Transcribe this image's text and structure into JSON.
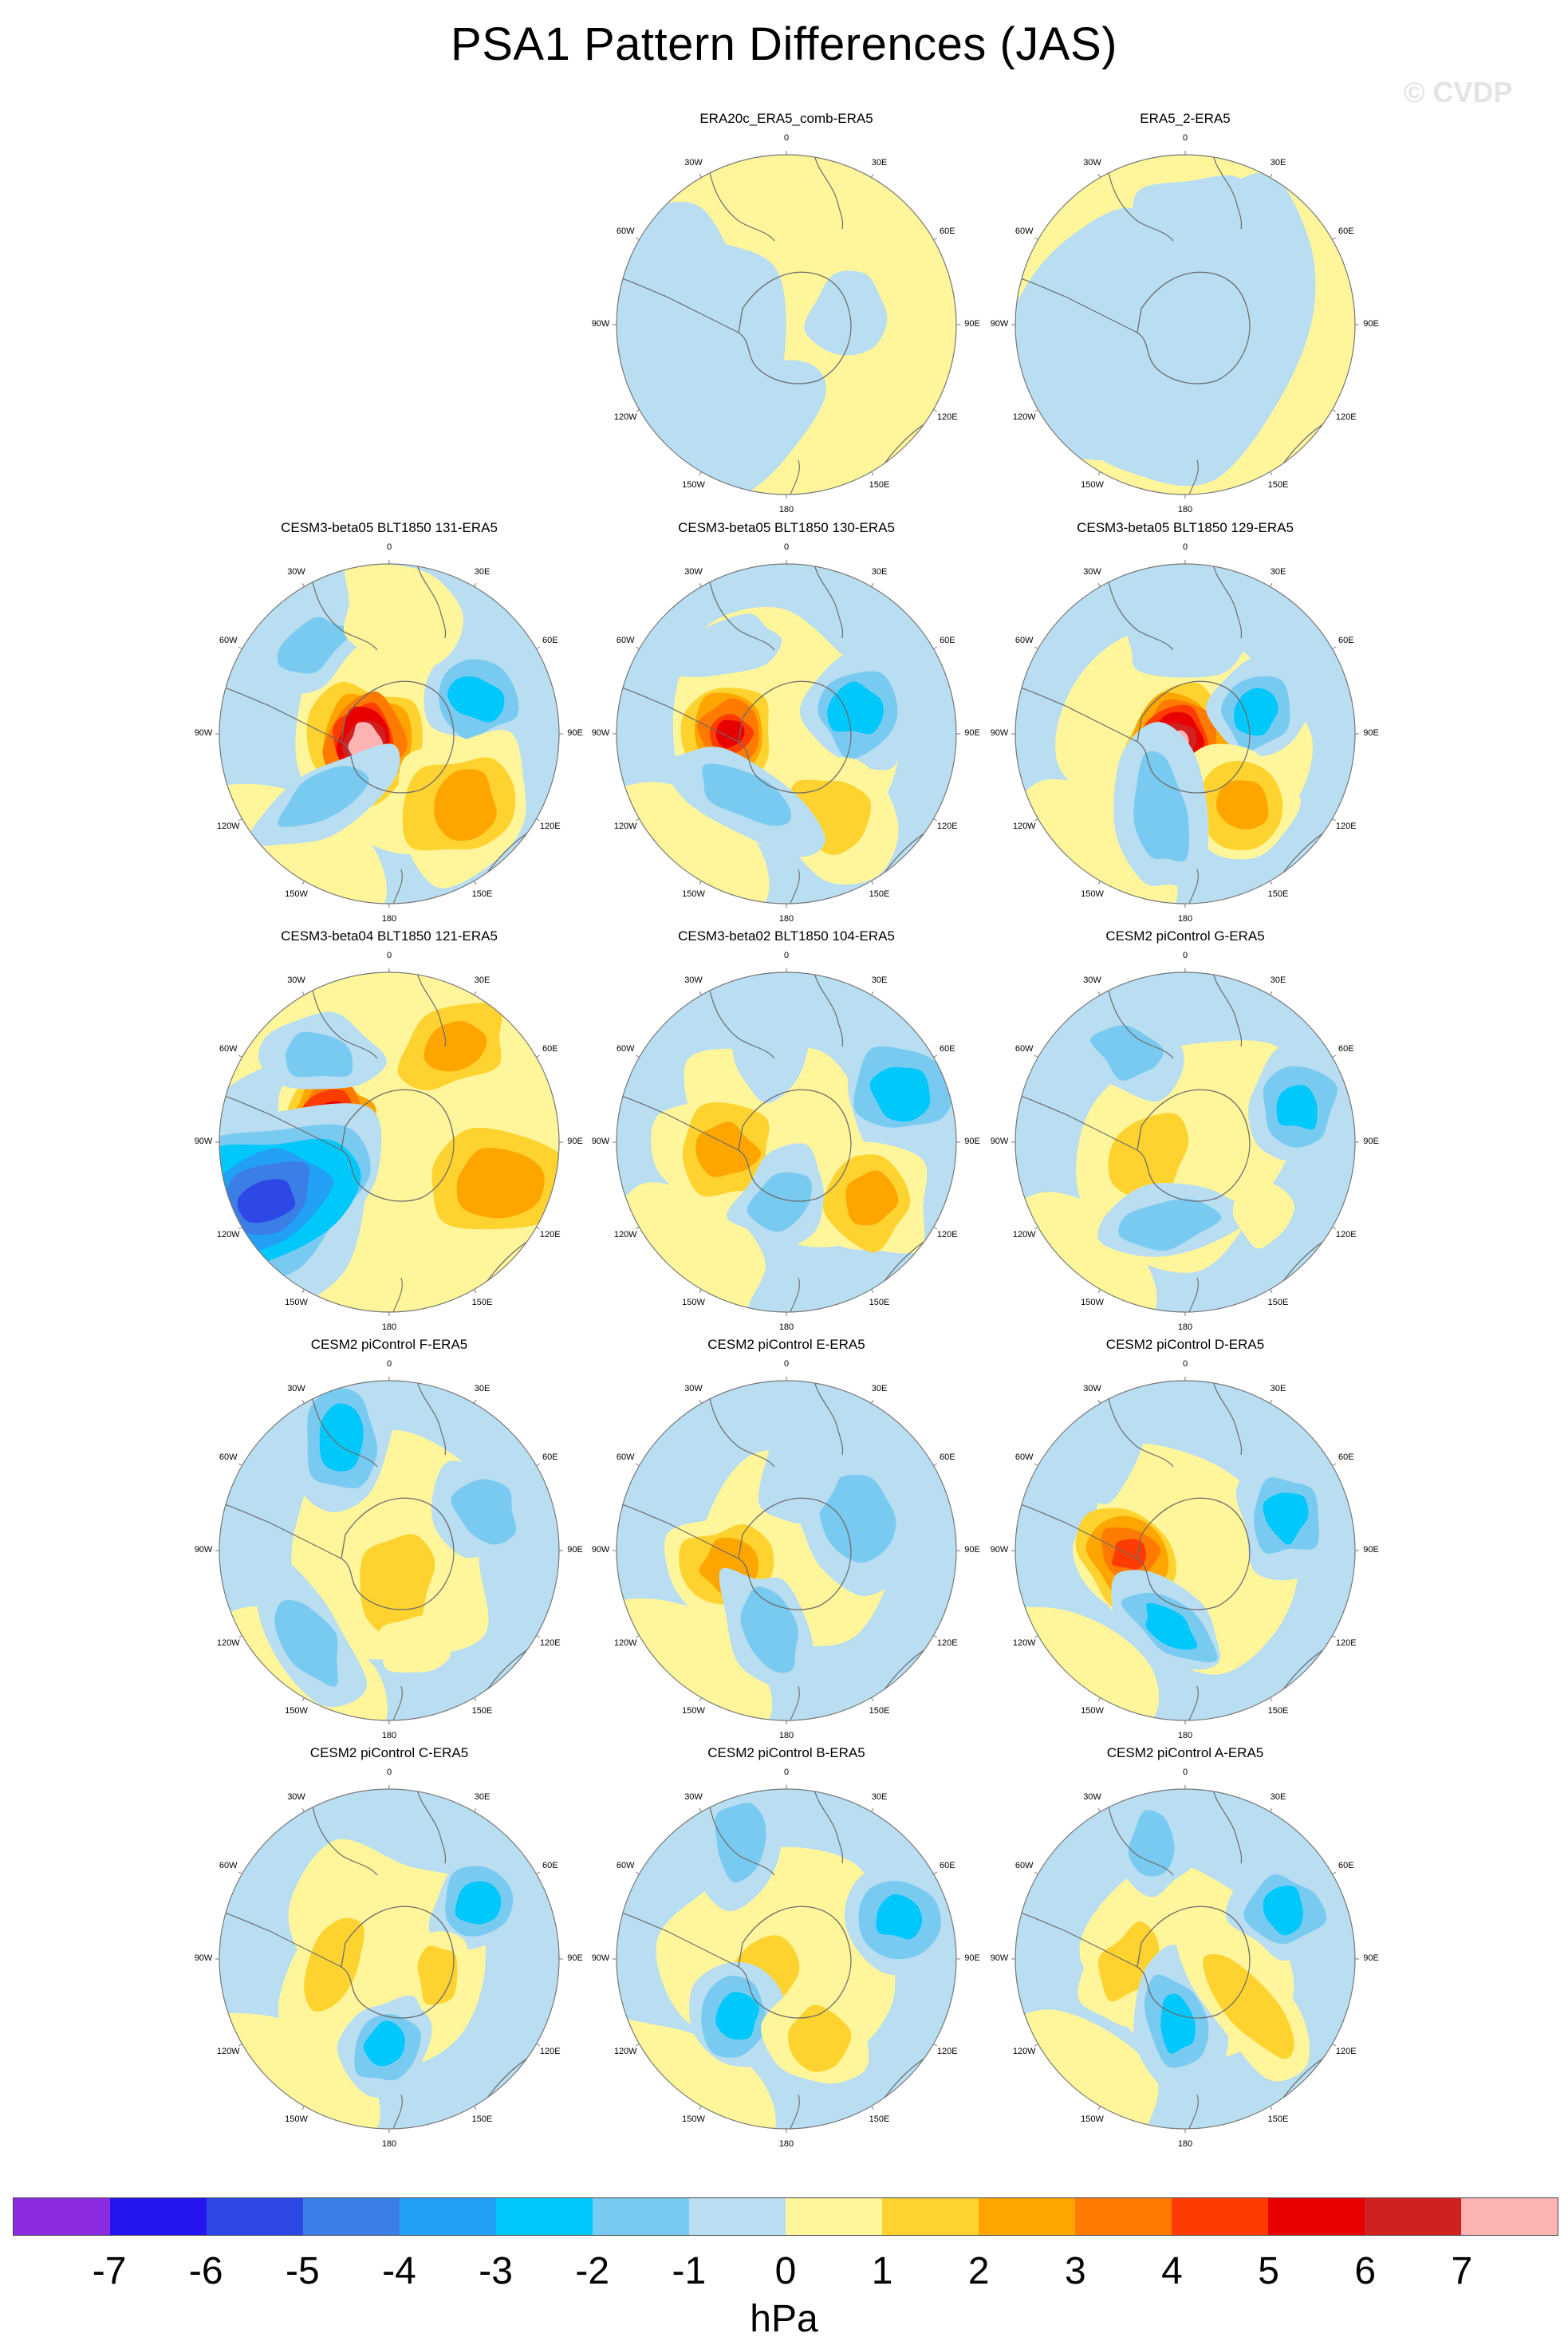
{
  "title": "PSA1 Pattern Differences (JAS)",
  "watermark": "© CVDP",
  "colors": {
    "ocean_neg_light": "#b9def2",
    "pos_light": "#fff59a",
    "coast": "#6c6c6c",
    "frame": "#777777"
  },
  "lon_labels": [
    "0",
    "30E",
    "60E",
    "90E",
    "120E",
    "150E",
    "180",
    "150W",
    "120W",
    "90W",
    "60W",
    "30W"
  ],
  "panels": [
    {
      "title": "ERA20c_ERA5_comb-ERA5",
      "row": 0,
      "col": 1
    },
    {
      "title": "ERA5_2-ERA5",
      "row": 0,
      "col": 2
    },
    {
      "title": "CESM3-beta05 BLT1850 131-ERA5",
      "row": 1,
      "col": 0
    },
    {
      "title": "CESM3-beta05 BLT1850 130-ERA5",
      "row": 1,
      "col": 1
    },
    {
      "title": "CESM3-beta05 BLT1850 129-ERA5",
      "row": 1,
      "col": 2
    },
    {
      "title": "CESM3-beta04 BLT1850 121-ERA5",
      "row": 2,
      "col": 0
    },
    {
      "title": "CESM3-beta02 BLT1850 104-ERA5",
      "row": 2,
      "col": 1
    },
    {
      "title": "CESM2 piControl G-ERA5",
      "row": 2,
      "col": 2
    },
    {
      "title": "CESM2 piControl F-ERA5",
      "row": 3,
      "col": 0
    },
    {
      "title": "CESM2 piControl E-ERA5",
      "row": 3,
      "col": 1
    },
    {
      "title": "CESM2 piControl D-ERA5",
      "row": 3,
      "col": 2
    },
    {
      "title": "CESM2 piControl C-ERA5",
      "row": 4,
      "col": 0
    },
    {
      "title": "CESM2 piControl B-ERA5",
      "row": 4,
      "col": 1
    },
    {
      "title": "CESM2 piControl A-ERA5",
      "row": 4,
      "col": 2
    }
  ],
  "colorbar": {
    "colors": [
      "#8b2be2",
      "#2414f0",
      "#2e48e6",
      "#3b7ee6",
      "#21a0f5",
      "#00c8fb",
      "#79caf0",
      "#b9def2",
      "#fff59a",
      "#fed330",
      "#fea500",
      "#fe7a00",
      "#fe3b00",
      "#e80000",
      "#d02020",
      "#ffb4b4"
    ],
    "ticks": [
      "-7",
      "-6",
      "-5",
      "-4",
      "-3",
      "-2",
      "-1",
      "0",
      "1",
      "2",
      "3",
      "4",
      "5",
      "6",
      "7"
    ],
    "units": "hPa"
  }
}
